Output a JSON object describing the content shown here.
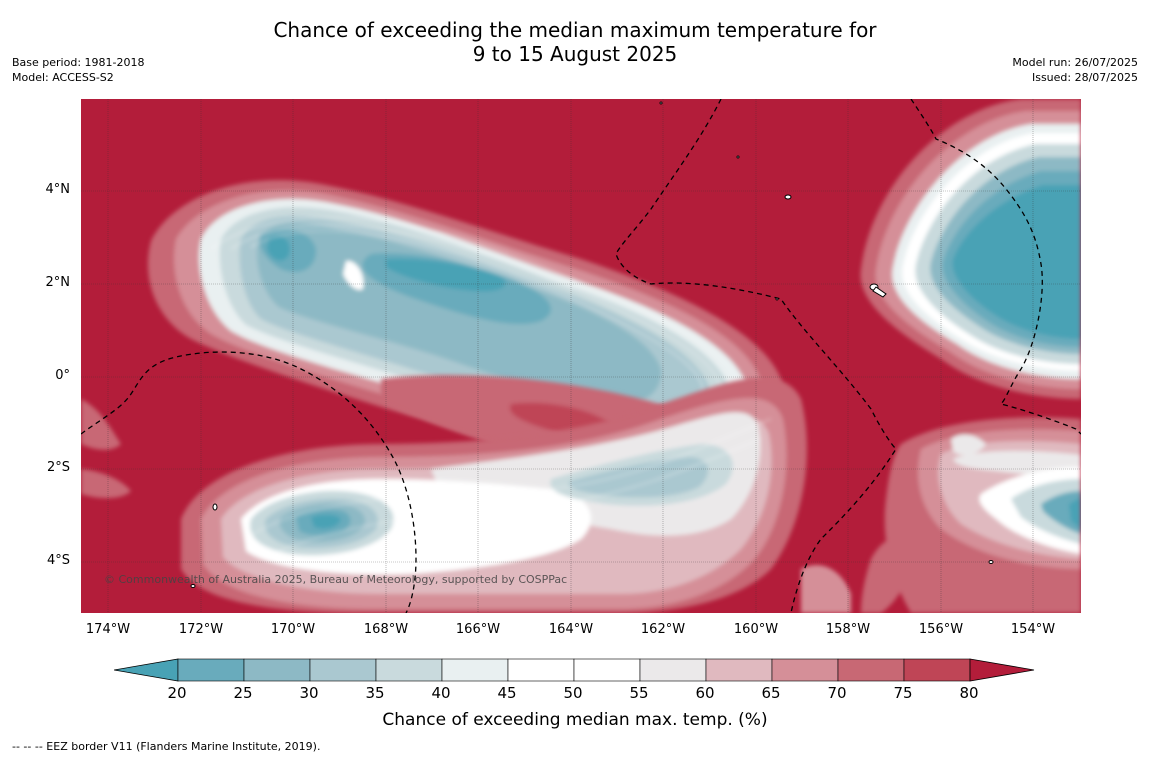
{
  "header": {
    "title_line1": "Chance of exceeding the median maximum temperature for",
    "title_line2": "9 to 15 August 2025",
    "base_period": "Base period: 1981-2018",
    "model": "Model: ACCESS-S2",
    "model_run": "Model run: 26/07/2025",
    "issued": "Issued: 28/07/2025"
  },
  "map": {
    "copyright": "© Commonwealth of Australia 2025, Bureau of Meteorology, supported by COSPPac",
    "lat_labels": [
      "4°N",
      "2°N",
      "0°",
      "2°S",
      "4°S"
    ],
    "lon_labels": [
      "174°W",
      "172°W",
      "170°W",
      "168°W",
      "166°W",
      "164°W",
      "162°W",
      "160°W",
      "158°W",
      "156°W",
      "154°W"
    ],
    "background_color": "#b31d3a"
  },
  "colorbar": {
    "ticks": [
      "20",
      "25",
      "30",
      "35",
      "40",
      "45",
      "50",
      "55",
      "60",
      "65",
      "70",
      "75",
      "80"
    ],
    "colors": [
      "#48a2b5",
      "#69abbc",
      "#8db9c5",
      "#aac8d0",
      "#c9dadd",
      "#e9f0f1",
      "#ffffff",
      "#ffffff",
      "#ebe9ea",
      "#e0b9bf",
      "#d58f98",
      "#c86874",
      "#bf4556",
      "#b31d3a"
    ],
    "title": "Chance of exceeding median max. temp. (%)"
  },
  "footer": {
    "eez_note": "--  --  -- EEZ border V11 (Flanders Marine Institute, 2019)."
  }
}
